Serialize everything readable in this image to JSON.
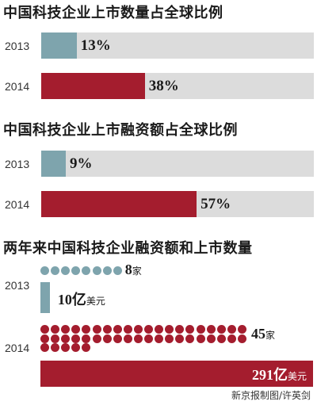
{
  "colors": {
    "y2013": "#7ea4ad",
    "y2014": "#a41d2e",
    "track": "#dcdcdc"
  },
  "chart_data": [
    {
      "type": "bar",
      "title": "中国科技企业上市数量占全球比例",
      "categories": [
        "2013",
        "2014"
      ],
      "values": [
        13,
        38
      ],
      "labels": [
        "13%",
        "38%"
      ],
      "ylim": [
        0,
        100
      ]
    },
    {
      "type": "bar",
      "title": "中国科技企业上市融资额占全球比例",
      "categories": [
        "2013",
        "2014"
      ],
      "values": [
        9,
        57
      ],
      "labels": [
        "9%",
        "57%"
      ],
      "ylim": [
        0,
        100
      ]
    },
    {
      "type": "bar",
      "title": "两年来中国科技企业融资额和上市数量",
      "categories": [
        "2013",
        "2014"
      ],
      "series": [
        {
          "values": [
            8,
            45
          ],
          "labels": [
            "8",
            "45"
          ],
          "unit": "家"
        },
        {
          "values": [
            10,
            291
          ],
          "labels": [
            "10亿",
            "291亿"
          ],
          "unit": "美元"
        }
      ]
    }
  ],
  "credit": "新京报制图/许英剑"
}
